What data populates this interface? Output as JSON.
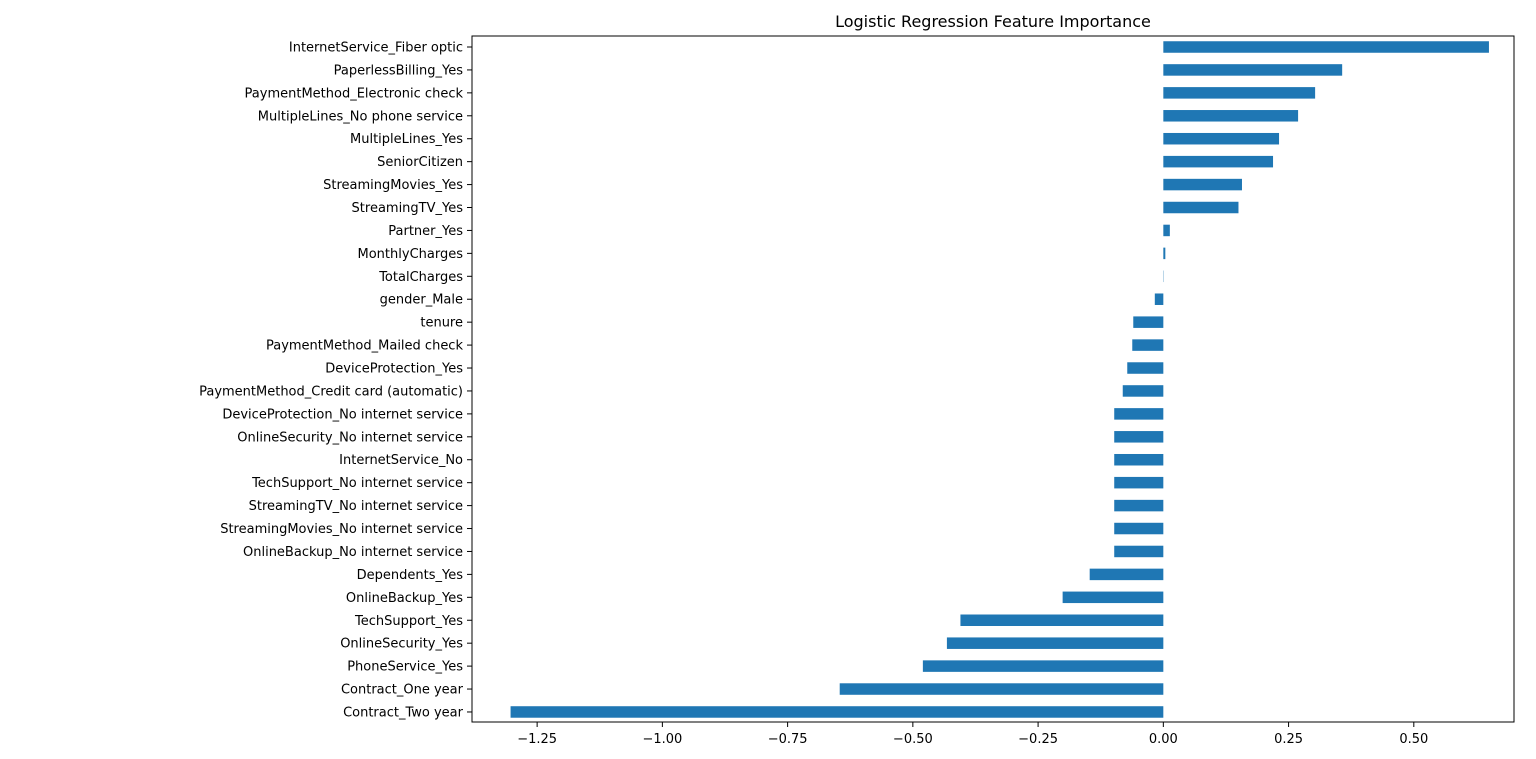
{
  "chart_data": {
    "type": "bar",
    "orientation": "horizontal",
    "title": "Logistic Regression Feature Importance",
    "xlabel": "",
    "ylabel": "",
    "xlim": [
      -1.38,
      0.7
    ],
    "xticks": [
      -1.25,
      -1.0,
      -0.75,
      -0.5,
      -0.25,
      0.0,
      0.25,
      0.5
    ],
    "xtick_labels": [
      "−1.25",
      "−1.00",
      "−0.75",
      "−0.50",
      "−0.25",
      "0.00",
      "0.25",
      "0.50"
    ],
    "grid": false,
    "legend": "none",
    "bar_color": "#1f77b4",
    "categories": [
      "InternetService_Fiber optic",
      "PaperlessBilling_Yes",
      "PaymentMethod_Electronic check",
      "MultipleLines_No phone service",
      "MultipleLines_Yes",
      "SeniorCitizen",
      "StreamingMovies_Yes",
      "StreamingTV_Yes",
      "Partner_Yes",
      "MonthlyCharges",
      "TotalCharges",
      "gender_Male",
      "tenure",
      "PaymentMethod_Mailed check",
      "DeviceProtection_Yes",
      "PaymentMethod_Credit card (automatic)",
      "DeviceProtection_No internet service",
      "OnlineSecurity_No internet service",
      "InternetService_No",
      "TechSupport_No internet service",
      "StreamingTV_No internet service",
      "StreamingMovies_No internet service",
      "OnlineBackup_No internet service",
      "Dependents_Yes",
      "OnlineBackup_Yes",
      "TechSupport_Yes",
      "OnlineSecurity_Yes",
      "PhoneService_Yes",
      "Contract_One year",
      "Contract_Two year"
    ],
    "values": [
      0.65,
      0.357,
      0.303,
      0.269,
      0.231,
      0.219,
      0.157,
      0.15,
      0.013,
      0.004,
      0.0003,
      -0.017,
      -0.06,
      -0.062,
      -0.072,
      -0.081,
      -0.098,
      -0.098,
      -0.098,
      -0.098,
      -0.098,
      -0.098,
      -0.098,
      -0.147,
      -0.201,
      -0.405,
      -0.432,
      -0.48,
      -0.646,
      -1.303
    ]
  }
}
